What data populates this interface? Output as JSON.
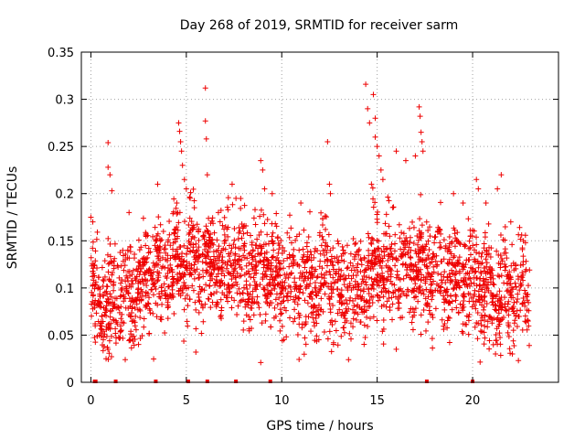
{
  "chart_data": {
    "type": "scatter",
    "title": "Day 268 of 2019, SRMTID for receiver sarm",
    "xlabel": "GPS time / hours",
    "ylabel": "SRMTID / TECUs",
    "xlim": [
      -0.5,
      24.5
    ],
    "ylim": [
      0,
      0.35
    ],
    "xticks": [
      0,
      5,
      10,
      15,
      20
    ],
    "yticks": [
      0,
      0.05,
      0.1,
      0.15,
      0.2,
      0.25,
      0.3,
      0.35
    ],
    "ytick_labels": [
      "0",
      "0.05",
      "0.1",
      "0.15",
      "0.2",
      "0.25",
      "0.3",
      "0.35"
    ],
    "grid": true,
    "marker": "plus",
    "series_color": "#ee0000",
    "data_range_hours": [
      0,
      23
    ],
    "baseline_cluster": {
      "description": "dense cloud of points mostly between 0.05 and 0.18 TECU across the day",
      "center_values": [
        [
          0,
          0.09
        ],
        [
          1,
          0.09
        ],
        [
          2,
          0.085
        ],
        [
          3,
          0.11
        ],
        [
          4,
          0.12
        ],
        [
          5,
          0.13
        ],
        [
          6,
          0.12
        ],
        [
          7,
          0.125
        ],
        [
          8,
          0.12
        ],
        [
          9,
          0.125
        ],
        [
          10,
          0.11
        ],
        [
          11,
          0.1
        ],
        [
          12,
          0.11
        ],
        [
          13,
          0.1
        ],
        [
          14,
          0.1
        ],
        [
          15,
          0.12
        ],
        [
          16,
          0.12
        ],
        [
          17,
          0.12
        ],
        [
          18,
          0.12
        ],
        [
          19,
          0.115
        ],
        [
          20,
          0.11
        ],
        [
          21,
          0.09
        ],
        [
          22,
          0.09
        ],
        [
          23,
          0.1
        ]
      ]
    },
    "notable_points": [
      {
        "x": 0.0,
        "y": 0.175
      },
      {
        "x": 0.1,
        "y": 0.17
      },
      {
        "x": 0.9,
        "y": 0.254
      },
      {
        "x": 0.9,
        "y": 0.228
      },
      {
        "x": 1.0,
        "y": 0.22
      },
      {
        "x": 1.1,
        "y": 0.203
      },
      {
        "x": 2.0,
        "y": 0.18
      },
      {
        "x": 3.5,
        "y": 0.21
      },
      {
        "x": 3.8,
        "y": 0.16
      },
      {
        "x": 4.5,
        "y": 0.19
      },
      {
        "x": 4.6,
        "y": 0.275
      },
      {
        "x": 4.65,
        "y": 0.266
      },
      {
        "x": 4.7,
        "y": 0.255
      },
      {
        "x": 4.75,
        "y": 0.245
      },
      {
        "x": 4.8,
        "y": 0.23
      },
      {
        "x": 4.9,
        "y": 0.215
      },
      {
        "x": 5.0,
        "y": 0.205
      },
      {
        "x": 5.2,
        "y": 0.195
      },
      {
        "x": 6.0,
        "y": 0.312
      },
      {
        "x": 6.0,
        "y": 0.277
      },
      {
        "x": 6.05,
        "y": 0.258
      },
      {
        "x": 6.1,
        "y": 0.22
      },
      {
        "x": 7.4,
        "y": 0.21
      },
      {
        "x": 7.6,
        "y": 0.195
      },
      {
        "x": 8.9,
        "y": 0.235
      },
      {
        "x": 9.0,
        "y": 0.225
      },
      {
        "x": 9.1,
        "y": 0.205
      },
      {
        "x": 9.5,
        "y": 0.2
      },
      {
        "x": 11.0,
        "y": 0.19
      },
      {
        "x": 12.4,
        "y": 0.255
      },
      {
        "x": 12.5,
        "y": 0.21
      },
      {
        "x": 12.55,
        "y": 0.2
      },
      {
        "x": 14.4,
        "y": 0.316
      },
      {
        "x": 14.5,
        "y": 0.29
      },
      {
        "x": 14.6,
        "y": 0.275
      },
      {
        "x": 14.8,
        "y": 0.305
      },
      {
        "x": 14.9,
        "y": 0.28
      },
      {
        "x": 14.9,
        "y": 0.26
      },
      {
        "x": 15.0,
        "y": 0.25
      },
      {
        "x": 15.1,
        "y": 0.24
      },
      {
        "x": 14.7,
        "y": 0.21
      },
      {
        "x": 15.2,
        "y": 0.225
      },
      {
        "x": 15.3,
        "y": 0.215
      },
      {
        "x": 16.0,
        "y": 0.245
      },
      {
        "x": 16.5,
        "y": 0.235
      },
      {
        "x": 17.0,
        "y": 0.24
      },
      {
        "x": 17.2,
        "y": 0.292
      },
      {
        "x": 17.25,
        "y": 0.282
      },
      {
        "x": 17.3,
        "y": 0.265
      },
      {
        "x": 17.35,
        "y": 0.255
      },
      {
        "x": 17.4,
        "y": 0.245
      },
      {
        "x": 19.0,
        "y": 0.2
      },
      {
        "x": 19.5,
        "y": 0.19
      },
      {
        "x": 20.2,
        "y": 0.215
      },
      {
        "x": 20.3,
        "y": 0.205
      },
      {
        "x": 20.7,
        "y": 0.19
      },
      {
        "x": 21.3,
        "y": 0.205
      },
      {
        "x": 21.5,
        "y": 0.22
      },
      {
        "x": 22.0,
        "y": 0.17
      },
      {
        "x": 1.8,
        "y": 0.024
      },
      {
        "x": 8.9,
        "y": 0.021
      },
      {
        "x": 13.5,
        "y": 0.024
      },
      {
        "x": 21.2,
        "y": 0.03
      },
      {
        "x": 22.4,
        "y": 0.023
      },
      {
        "x": 5.5,
        "y": 0.032
      },
      {
        "x": 16.0,
        "y": 0.035
      }
    ],
    "zero_markers_x": [
      0.2,
      0.25,
      1.3,
      3.4,
      5.1,
      6.1,
      7.6,
      9.4,
      17.6,
      20.0
    ]
  }
}
